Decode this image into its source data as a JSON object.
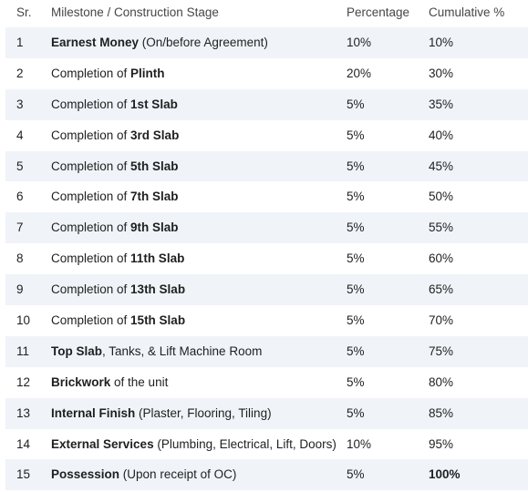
{
  "headers": {
    "sr": "Sr.",
    "milestone": "Milestone / Construction Stage",
    "percentage": "Percentage",
    "cumulative": "Cumulative %"
  },
  "rows": [
    {
      "sr": "1",
      "pre": "",
      "bold": "Earnest Money",
      "post": " (On/before Agreement)",
      "pct": "10%",
      "cum": "10%"
    },
    {
      "sr": "2",
      "pre": "Completion of ",
      "bold": "Plinth",
      "post": "",
      "pct": "20%",
      "cum": "30%"
    },
    {
      "sr": "3",
      "pre": "Completion of ",
      "bold": "1st Slab",
      "post": "",
      "pct": "5%",
      "cum": "35%"
    },
    {
      "sr": "4",
      "pre": "Completion of ",
      "bold": "3rd Slab",
      "post": "",
      "pct": "5%",
      "cum": "40%"
    },
    {
      "sr": "5",
      "pre": "Completion of ",
      "bold": "5th Slab",
      "post": "",
      "pct": "5%",
      "cum": "45%"
    },
    {
      "sr": "6",
      "pre": "Completion of ",
      "bold": "7th Slab",
      "post": "",
      "pct": "5%",
      "cum": "50%"
    },
    {
      "sr": "7",
      "pre": "Completion of ",
      "bold": "9th Slab",
      "post": "",
      "pct": "5%",
      "cum": "55%"
    },
    {
      "sr": "8",
      "pre": "Completion of ",
      "bold": "11th Slab",
      "post": "",
      "pct": "5%",
      "cum": "60%"
    },
    {
      "sr": "9",
      "pre": "Completion of ",
      "bold": "13th Slab",
      "post": "",
      "pct": "5%",
      "cum": "65%"
    },
    {
      "sr": "10",
      "pre": "Completion of ",
      "bold": "15th Slab",
      "post": "",
      "pct": "5%",
      "cum": "70%"
    },
    {
      "sr": "11",
      "pre": "",
      "bold": "Top Slab",
      "post": ", Tanks, & Lift Machine Room",
      "pct": "5%",
      "cum": "75%"
    },
    {
      "sr": "12",
      "pre": "",
      "bold": "Brickwork",
      "post": " of the unit",
      "pct": "5%",
      "cum": "80%"
    },
    {
      "sr": "13",
      "pre": "",
      "bold": "Internal Finish",
      "post": " (Plaster, Flooring, Tiling)",
      "pct": "5%",
      "cum": "85%"
    },
    {
      "sr": "14",
      "pre": "",
      "bold": "External Services",
      "post": " (Plumbing, Electrical, Lift, Doors)",
      "pct": "10%",
      "cum": "95%"
    },
    {
      "sr": "15",
      "pre": "",
      "bold": "Possession",
      "post": " (Upon receipt of OC)",
      "pct": "5%",
      "cum": "100%",
      "cum_bold": true
    }
  ]
}
